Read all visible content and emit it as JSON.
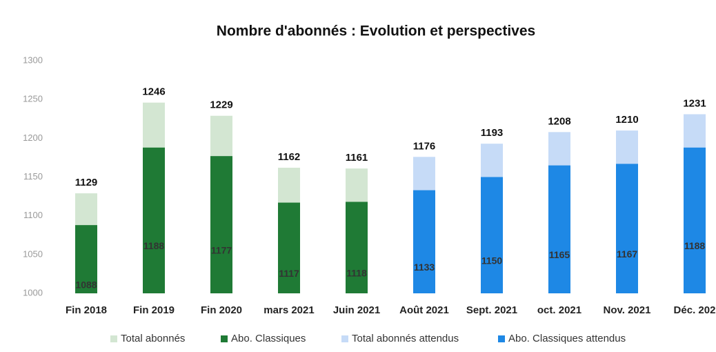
{
  "chart_data": {
    "type": "bar",
    "title": "Nombre d'abonnés : Evolution et perspectives",
    "categories": [
      "Fin 2018",
      "Fin 2019",
      "Fin 2020",
      "mars 2021",
      "Juin 2021",
      "Août 2021",
      "Sept. 2021",
      "oct. 2021",
      "Nov. 2021",
      "Déc. 202"
    ],
    "series": [
      {
        "name": "Total abonnés",
        "color": "#d3e6d2",
        "values": [
          1129,
          1246,
          1229,
          1162,
          1161,
          null,
          null,
          null,
          null,
          null
        ]
      },
      {
        "name": "Abo. Classiques",
        "color": "#1f7a35",
        "values": [
          1088,
          1188,
          1177,
          1117,
          1118,
          null,
          null,
          null,
          null,
          null
        ]
      },
      {
        "name": "Total abonnés attendus",
        "color": "#c6dbf7",
        "values": [
          null,
          null,
          null,
          null,
          null,
          1176,
          1193,
          1208,
          1210,
          1231
        ]
      },
      {
        "name": "Abo. Classiques attendus",
        "color": "#1e88e5",
        "values": [
          null,
          null,
          null,
          null,
          null,
          1133,
          1150,
          1165,
          1167,
          1188
        ]
      }
    ],
    "ylim": [
      1000,
      1300
    ],
    "yticks": [
      1000,
      1050,
      1100,
      1150,
      1200,
      1250,
      1300
    ],
    "grid": false,
    "legend": "bottom"
  }
}
